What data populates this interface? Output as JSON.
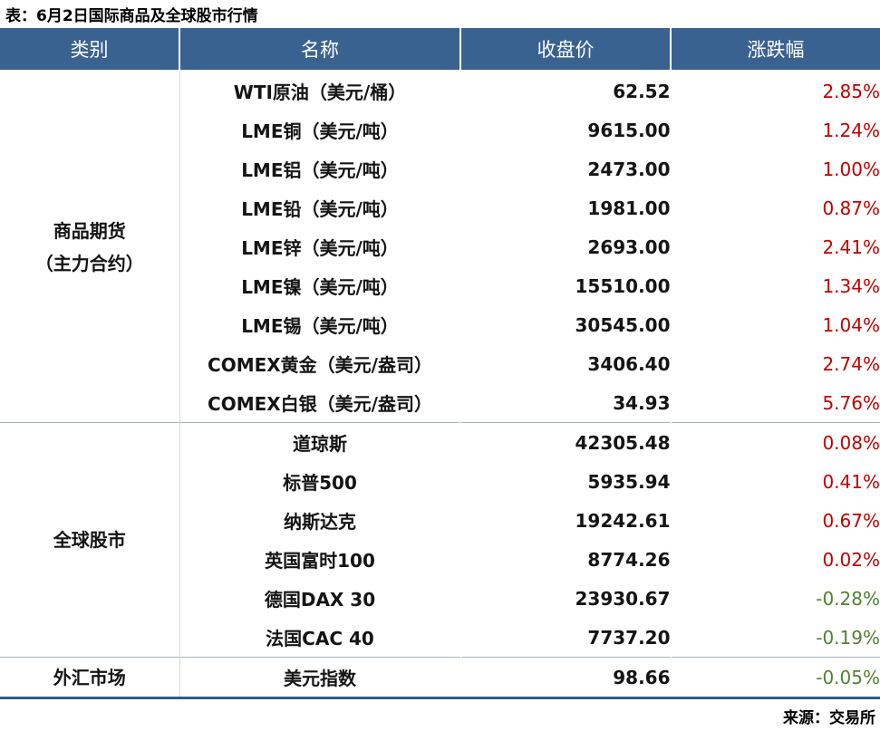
{
  "title": "表：6月2日国际商品及全球股市行情",
  "source": "来源：交易所",
  "colors": {
    "header_bg": "#3a6291",
    "stripe_bg": "#dce6f1",
    "up_text": "#c00000",
    "down_text": "#538135",
    "bottom_border": "#2e5c8a"
  },
  "chart_data": {
    "type": "table",
    "title": "表：6月2日国际商品及全球股市行情",
    "source": "来源：交易所",
    "columns": [
      "类别",
      "名称",
      "收盘价",
      "涨跌幅"
    ],
    "sections": [
      {
        "category": [
          "商品期货",
          "（主力合约）"
        ],
        "rows": [
          {
            "name": "WTI原油（美元/桶）",
            "close": "62.52",
            "change": "2.85%",
            "direction": "up"
          },
          {
            "name": "LME铜（美元/吨）",
            "close": "9615.00",
            "change": "1.24%",
            "direction": "up"
          },
          {
            "name": "LME铝（美元/吨）",
            "close": "2473.00",
            "change": "1.00%",
            "direction": "up"
          },
          {
            "name": "LME铅（美元/吨）",
            "close": "1981.00",
            "change": "0.87%",
            "direction": "up"
          },
          {
            "name": "LME锌（美元/吨）",
            "close": "2693.00",
            "change": "2.41%",
            "direction": "up"
          },
          {
            "name": "LME镍（美元/吨）",
            "close": "15510.00",
            "change": "1.34%",
            "direction": "up"
          },
          {
            "name": "LME锡（美元/吨）",
            "close": "30545.00",
            "change": "1.04%",
            "direction": "up"
          },
          {
            "name": "COMEX黄金（美元/盎司）",
            "close": "3406.40",
            "change": "2.74%",
            "direction": "up"
          },
          {
            "name": "COMEX白银（美元/盎司）",
            "close": "34.93",
            "change": "5.76%",
            "direction": "up"
          }
        ]
      },
      {
        "category": [
          "全球股市"
        ],
        "rows": [
          {
            "name": "道琼斯",
            "close": "42305.48",
            "change": "0.08%",
            "direction": "up"
          },
          {
            "name": "标普500",
            "close": "5935.94",
            "change": "0.41%",
            "direction": "up"
          },
          {
            "name": "纳斯达克",
            "close": "19242.61",
            "change": "0.67%",
            "direction": "up"
          },
          {
            "name": "英国富时100",
            "close": "8774.26",
            "change": "0.02%",
            "direction": "up"
          },
          {
            "name": "德国DAX 30",
            "close": "23930.67",
            "change": "-0.28%",
            "direction": "down"
          },
          {
            "name": "法国CAC 40",
            "close": "7737.20",
            "change": "-0.19%",
            "direction": "down"
          }
        ]
      },
      {
        "category": [
          "外汇市场"
        ],
        "rows": [
          {
            "name": "美元指数",
            "close": "98.66",
            "change": "-0.05%",
            "direction": "down"
          }
        ]
      }
    ]
  }
}
